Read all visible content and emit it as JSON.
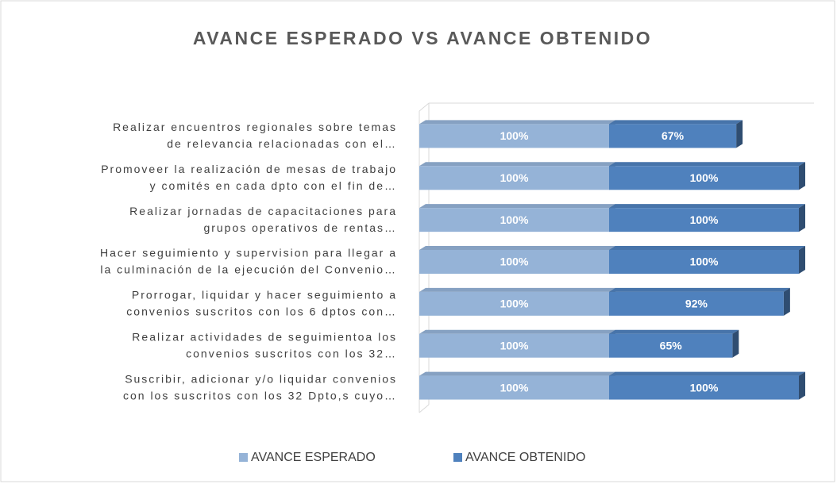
{
  "chart_data": {
    "type": "stacked-bar-horizontal",
    "title": "AVANCE ESPERADO VS AVANCE OBTENIDO",
    "categories": [
      [
        "Realizar encuentros regionales sobre temas",
        "de relevancia relacionadas con el…"
      ],
      [
        "Promoveer la realización de mesas de trabajo",
        "y comités en cada dpto con el fin de…"
      ],
      [
        "Realizar jornadas de capacitaciones para",
        "grupos operativos de rentas…"
      ],
      [
        "Hacer seguimiento y supervision para llegar a",
        "la culminación de la ejecución del Convenio…"
      ],
      [
        "Prorrogar, liquidar y hacer seguimiento a",
        "convenios suscritos con los 6 dptos con…"
      ],
      [
        "Realizar actividades de seguimientoa los",
        "convenios suscritos con los 32…"
      ],
      [
        "Suscribir, adicionar y/o liquidar convenios",
        "con los suscritos con los 32 Dpto,s  cuyo…"
      ]
    ],
    "series": [
      {
        "name": "AVANCE ESPERADO",
        "color": "#95b3d7",
        "values": [
          100,
          100,
          100,
          100,
          100,
          100,
          100
        ],
        "value_labels": [
          "100%",
          "100%",
          "100%",
          "100%",
          "100%",
          "100%",
          "100%"
        ]
      },
      {
        "name": "AVANCE OBTENIDO",
        "color": "#4f81bd",
        "values": [
          67,
          100,
          100,
          100,
          92,
          65,
          100
        ],
        "value_labels": [
          "67%",
          "100%",
          "100%",
          "100%",
          "92%",
          "65%",
          "100%"
        ]
      }
    ],
    "xlim": [
      0,
      200
    ],
    "legend": "bottom"
  }
}
